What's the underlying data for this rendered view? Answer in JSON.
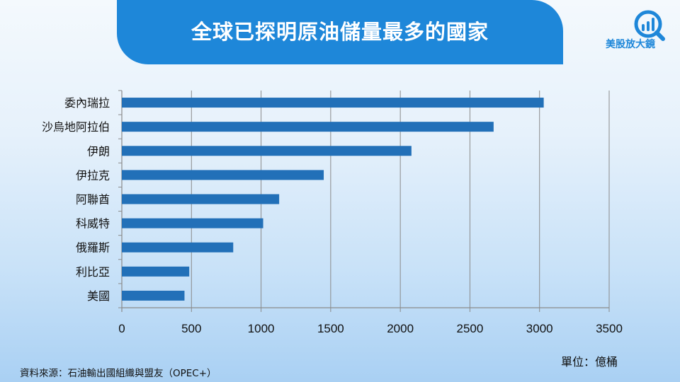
{
  "header": {
    "title": "全球已探明原油儲量最多的國家"
  },
  "logo": {
    "text": "美股放大鏡",
    "icon": "magnifier-bar-chart-icon"
  },
  "unit_label": "單位：億桶",
  "source": "資料來源：石油輸出國組織與盟友（OPEC+）",
  "colors": {
    "bar": "#2270b8",
    "accent": "#1e87d9"
  },
  "chart_data": {
    "type": "bar",
    "orientation": "horizontal",
    "categories": [
      "委內瑞拉",
      "沙烏地阿拉伯",
      "伊朗",
      "伊拉克",
      "阿聯酋",
      "科威特",
      "俄羅斯",
      "利比亞",
      "美國"
    ],
    "values": [
      3030,
      2670,
      2080,
      1450,
      1130,
      1015,
      800,
      484,
      450
    ],
    "xlim": [
      0,
      3500
    ],
    "xticks": [
      "0",
      "500",
      "1000",
      "1500",
      "2000",
      "2500",
      "3000",
      "3500"
    ],
    "xlabel": "",
    "ylabel": "",
    "grid": "vertical"
  }
}
